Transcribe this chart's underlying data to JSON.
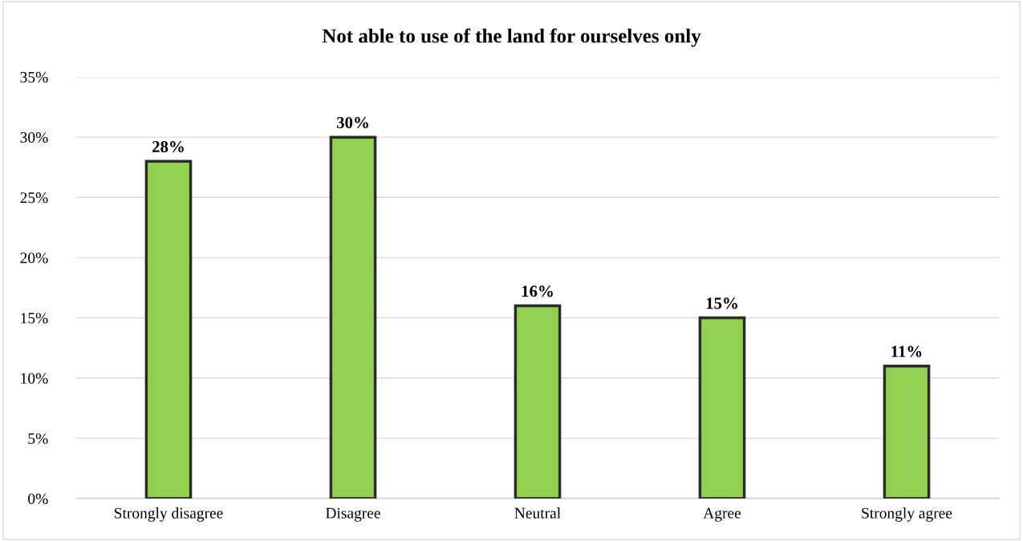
{
  "chart_data": {
    "type": "bar",
    "title": "Not able to use of the land for ourselves only",
    "categories": [
      "Strongly disagree",
      "Disagree",
      "Neutral",
      "Agree",
      "Strongly agree"
    ],
    "values": [
      28,
      30,
      16,
      15,
      11
    ],
    "value_labels": [
      "28%",
      "30%",
      "16%",
      "15%",
      "11%"
    ],
    "color": "#92d050",
    "ylim": [
      0,
      35
    ],
    "yticks": [
      {
        "value": 0,
        "label": "0%"
      },
      {
        "value": 5,
        "label": "5%"
      },
      {
        "value": 10,
        "label": "10%"
      },
      {
        "value": 15,
        "label": "15%"
      },
      {
        "value": 20,
        "label": "20%"
      },
      {
        "value": 25,
        "label": "25%"
      },
      {
        "value": 30,
        "label": "30%"
      },
      {
        "value": 35,
        "label": "35%"
      }
    ],
    "grid": "y",
    "legend": false
  }
}
